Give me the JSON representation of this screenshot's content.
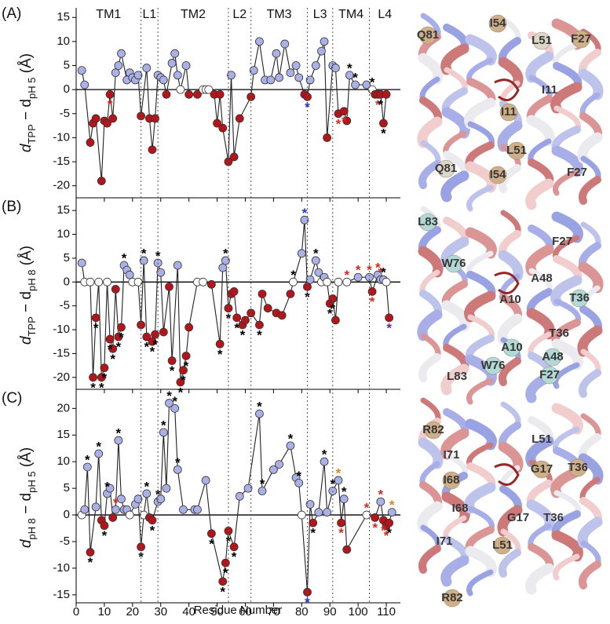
{
  "regions": {
    "labels": [
      "TM1",
      "L1",
      "TM2",
      "L2",
      "TM3",
      "L3",
      "TM4",
      "L4"
    ],
    "boundaries": [
      23,
      29,
      54,
      62,
      82,
      91,
      104
    ]
  },
  "xlabel": "Residue Number",
  "point_colors": {
    "positive": "#aab1e6",
    "negative": "#b3151b",
    "zero": "#ffffff"
  },
  "chart_data": [
    {
      "type": "line",
      "panel": "(A)",
      "ylabel": [
        {
          "text": "d"
        },
        {
          "text": "TPP",
          "sub": true
        },
        {
          "text": " − d"
        },
        {
          "text": "pH 5",
          "sub": true
        },
        {
          "text": " (Å)"
        }
      ],
      "xlim": [
        0,
        115
      ],
      "ylim": [
        -22.5,
        17
      ],
      "yticks": [
        15,
        10,
        5,
        0,
        -5,
        -10,
        -15,
        -20
      ],
      "x": [
        2,
        3,
        5,
        6,
        7,
        9,
        10,
        11,
        12,
        13,
        14,
        15,
        16,
        18,
        19,
        20,
        21,
        22,
        23,
        25,
        26,
        27,
        28,
        29,
        30,
        31,
        32,
        34,
        35,
        36,
        37,
        39,
        40,
        43,
        45,
        46,
        47,
        49,
        50,
        51,
        52,
        54,
        55,
        56,
        58,
        62,
        63,
        65,
        67,
        69,
        71,
        72,
        74,
        76,
        78,
        79,
        81,
        82,
        83,
        85,
        87,
        88,
        89,
        91,
        92,
        93,
        95,
        96,
        97,
        99,
        103,
        105,
        106,
        107,
        108,
        109,
        110
      ],
      "values": [
        4,
        1,
        -11,
        -7,
        -6,
        -19,
        -6.5,
        -7,
        -1,
        -6,
        3.5,
        5,
        7.5,
        2,
        3.5,
        2.5,
        2,
        3,
        -5.5,
        4.5,
        -6,
        -12.5,
        -6,
        3,
        2.5,
        2,
        -1,
        5.5,
        7.5,
        3,
        0,
        5,
        -1,
        -1,
        0,
        0,
        0,
        -1,
        -7,
        -1,
        -8,
        -15,
        3,
        -14,
        -6,
        -1.5,
        4,
        10,
        2,
        2,
        7.5,
        2.5,
        9.5,
        3.5,
        5,
        2.5,
        -1,
        -1.5,
        2,
        5,
        8,
        10,
        -10,
        5,
        4.5,
        -5,
        -4.5,
        -6.5,
        3,
        1,
        1,
        0,
        -1,
        -1,
        -1,
        -7,
        -1
      ],
      "marker_color": "#000000",
      "markers": [
        {
          "x": 12,
          "text": "*",
          "color": "#d42a1e"
        },
        {
          "x": 82,
          "text": "*",
          "color": "#2a36d4"
        },
        {
          "x": 93,
          "text": "*",
          "color": "#d42a1e"
        },
        {
          "x": 95,
          "text": "*",
          "color": "#d42a1e"
        },
        {
          "x": 97,
          "text": "*"
        },
        {
          "x": 99,
          "text": "*"
        },
        {
          "x": 105,
          "text": "*"
        },
        {
          "x": 107,
          "text": "*",
          "color": "#d42a1e"
        },
        {
          "x": 108,
          "text": "*"
        },
        {
          "x": 109,
          "text": "*"
        }
      ]
    },
    {
      "type": "line",
      "panel": "(B)",
      "ylabel": [
        {
          "text": "d"
        },
        {
          "text": "TPP",
          "sub": true
        },
        {
          "text": " − d"
        },
        {
          "text": "pH 8",
          "sub": true
        },
        {
          "text": " (Å)"
        }
      ],
      "xlim": [
        0,
        115
      ],
      "ylim": [
        -22.5,
        17
      ],
      "yticks": [
        15,
        10,
        5,
        0,
        -5,
        -10,
        -15,
        -20
      ],
      "x": [
        2,
        3,
        5,
        6,
        7,
        8,
        9,
        10,
        11,
        12,
        13,
        14,
        15,
        16,
        17,
        18,
        19,
        20,
        22,
        23,
        24,
        25,
        27,
        28,
        29,
        30,
        31,
        33,
        34,
        36,
        37,
        38,
        39,
        40,
        43,
        45,
        48,
        51,
        52,
        53,
        54,
        55,
        56,
        57,
        59,
        60,
        62,
        65,
        66,
        68,
        71,
        73,
        76,
        77,
        80,
        81,
        82,
        83,
        85,
        86,
        87,
        88,
        89,
        90,
        91,
        92,
        93,
        96,
        100,
        104,
        105,
        107,
        108,
        109,
        110,
        111
      ],
      "values": [
        4,
        0,
        0,
        -20,
        -7.5,
        0,
        -20,
        -18,
        0,
        -12,
        -14,
        -1.5,
        -11.5,
        -9.5,
        3.5,
        2.5,
        1.5,
        0,
        0,
        -9,
        4.5,
        -11.5,
        -12.5,
        -11,
        4,
        2,
        -10.5,
        -1,
        -16.5,
        3.5,
        -21,
        -18.5,
        -15.5,
        -9.5,
        0,
        0,
        -0.5,
        -13,
        3,
        4.5,
        -5.5,
        -2.5,
        -2,
        -7.5,
        -9,
        -8,
        -6.5,
        -9,
        -2.5,
        -5.5,
        -6.5,
        -7,
        -2.5,
        0,
        6,
        13,
        -1,
        0.5,
        4.5,
        2,
        0,
        1,
        0,
        -4.5,
        -3.5,
        -8,
        0,
        0,
        1,
        1,
        -2,
        1.5,
        0.5,
        0.5,
        0,
        -7.5
      ],
      "marker_color": "#000000",
      "markers": [
        {
          "x": 6,
          "text": "*"
        },
        {
          "x": 7,
          "text": "*"
        },
        {
          "x": 9,
          "text": "*"
        },
        {
          "x": 10,
          "text": "*"
        },
        {
          "x": 12,
          "text": "*"
        },
        {
          "x": 13,
          "text": "*"
        },
        {
          "x": 15,
          "text": "*"
        },
        {
          "x": 16,
          "text": "*"
        },
        {
          "x": 17,
          "text": "*"
        },
        {
          "x": 24,
          "text": "*"
        },
        {
          "x": 25,
          "text": "*"
        },
        {
          "x": 27,
          "text": "*"
        },
        {
          "x": 28,
          "text": "*"
        },
        {
          "x": 29,
          "text": "*"
        },
        {
          "x": 34,
          "text": "*"
        },
        {
          "x": 37,
          "text": "*"
        },
        {
          "x": 38,
          "text": "*"
        },
        {
          "x": 39,
          "text": "*"
        },
        {
          "x": 51,
          "text": "*"
        },
        {
          "x": 53,
          "text": "*"
        },
        {
          "x": 54,
          "text": "*"
        },
        {
          "x": 57,
          "text": "*"
        },
        {
          "x": 59,
          "text": "*"
        },
        {
          "x": 65,
          "text": "*"
        },
        {
          "x": 77,
          "text": "*"
        },
        {
          "x": 81,
          "text": "*",
          "color": "#2a36d4"
        },
        {
          "x": 82,
          "text": "*"
        },
        {
          "x": 85,
          "text": "*"
        },
        {
          "x": 90,
          "text": "*"
        },
        {
          "x": 91,
          "text": "*"
        },
        {
          "x": 96,
          "text": "*",
          "color": "#d42a1e"
        },
        {
          "x": 100,
          "text": "*",
          "color": "#d42a1e"
        },
        {
          "x": 104,
          "text": "*",
          "color": "#d42a1e"
        },
        {
          "x": 105,
          "text": "*",
          "color": "#d42a1e"
        },
        {
          "x": 107,
          "text": "*",
          "color": "#d42a1e"
        },
        {
          "x": 108,
          "text": "*",
          "color": "#d42a1e"
        },
        {
          "x": 109,
          "text": "*"
        },
        {
          "x": 111,
          "text": "*",
          "color": "#5a2aa0"
        }
      ]
    },
    {
      "type": "line",
      "panel": "(C)",
      "ylabel": [
        {
          "text": "d"
        },
        {
          "text": "pH 8",
          "sub": true
        },
        {
          "text": " − d"
        },
        {
          "text": "pH 5",
          "sub": true
        },
        {
          "text": " (Å)"
        }
      ],
      "xlim": [
        0,
        115
      ],
      "ylim": [
        -16.5,
        23
      ],
      "yticks": [
        20,
        15,
        10,
        5,
        0,
        -5,
        -10,
        -15
      ],
      "xticks": [
        0,
        10,
        20,
        30,
        40,
        50,
        60,
        70,
        80,
        90,
        100,
        110
      ],
      "x": [
        2,
        3,
        4,
        5,
        7,
        8,
        9,
        10,
        11,
        12,
        13,
        14,
        15,
        16,
        17,
        18,
        19,
        21,
        22,
        23,
        24,
        25,
        26,
        27,
        29,
        30,
        31,
        32,
        33,
        35,
        36,
        38,
        42,
        43,
        46,
        48,
        52,
        53,
        54,
        56,
        58,
        61,
        65,
        66,
        70,
        72,
        76,
        78,
        79,
        80,
        82,
        83,
        84,
        86,
        88,
        89,
        91,
        93,
        94,
        95,
        96,
        103,
        106,
        108,
        109,
        110,
        111,
        112
      ],
      "values": [
        0,
        1,
        9,
        -7,
        1.5,
        11.5,
        -1,
        -2,
        4,
        5,
        -0.5,
        1,
        14,
        3,
        1,
        1,
        0,
        2,
        3,
        -6,
        0,
        4,
        -0.5,
        -1,
        2.5,
        3,
        15.5,
        5,
        21,
        20,
        8.5,
        1,
        1,
        1,
        6.5,
        -3.5,
        -12.5,
        -9,
        -3,
        -6,
        3.5,
        5,
        19,
        4.5,
        8.5,
        9.5,
        13,
        7,
        6,
        0,
        -14.5,
        2,
        -1.5,
        0.5,
        10,
        0.5,
        4.5,
        6.5,
        -1.5,
        3,
        -6.5,
        0,
        -0.5,
        2.5,
        -1,
        -2,
        -1.5,
        0.5
      ],
      "marker_color": "#000000",
      "markers": [
        {
          "x": 4,
          "text": "*"
        },
        {
          "x": 5,
          "text": "*"
        },
        {
          "x": 8,
          "text": "*"
        },
        {
          "x": 10,
          "text": "*"
        },
        {
          "x": 11,
          "text": "*"
        },
        {
          "x": 14,
          "text": "*",
          "color": "#d42a1e"
        },
        {
          "x": 15,
          "text": "*"
        },
        {
          "x": 23,
          "text": "*"
        },
        {
          "x": 25,
          "text": "*"
        },
        {
          "x": 27,
          "text": "*"
        },
        {
          "x": 29,
          "text": "*"
        },
        {
          "x": 31,
          "text": "*"
        },
        {
          "x": 33,
          "text": "*"
        },
        {
          "x": 35,
          "text": "*"
        },
        {
          "x": 36,
          "text": "*"
        },
        {
          "x": 48,
          "text": "*"
        },
        {
          "x": 52,
          "text": "*"
        },
        {
          "x": 53,
          "text": "*"
        },
        {
          "x": 54,
          "text": "*"
        },
        {
          "x": 56,
          "text": "*"
        },
        {
          "x": 65,
          "text": "*"
        },
        {
          "x": 66,
          "text": "*"
        },
        {
          "x": 76,
          "text": "*"
        },
        {
          "x": 79,
          "text": "*"
        },
        {
          "x": 82,
          "text": "*",
          "color": "#2a36d4"
        },
        {
          "x": 84,
          "text": "*"
        },
        {
          "x": 88,
          "text": "*"
        },
        {
          "x": 91,
          "text": "*"
        },
        {
          "x": 93,
          "text": "*",
          "color": "#e8821e"
        },
        {
          "x": 94,
          "text": "*",
          "color": "#d42a1e"
        },
        {
          "x": 95,
          "text": "*"
        },
        {
          "x": 103,
          "text": "*",
          "color": "#d42a1e"
        },
        {
          "x": 106,
          "text": "*",
          "color": "#d42a1e"
        },
        {
          "x": 108,
          "text": "*",
          "color": "#d42a1e"
        },
        {
          "x": 109,
          "text": "*",
          "color": "#d42a1e"
        },
        {
          "x": 110,
          "text": "*",
          "color": "#d42a1e"
        },
        {
          "x": 111,
          "text": "*"
        },
        {
          "x": 112,
          "text": "*",
          "color": "#e8821e"
        }
      ]
    }
  ],
  "structures": [
    {
      "labels": [
        {
          "text": "Q81",
          "sphere": "#c9a77c"
        },
        {
          "text": "I54",
          "sphere": "#c9a77c"
        },
        {
          "text": "L51",
          "sphere": "#d9d4c4"
        },
        {
          "text": "F27",
          "sphere": "#c9a77c"
        },
        {
          "text": "I11"
        },
        {
          "text": "I11",
          "sphere": "#c9a77c"
        },
        {
          "text": "L51",
          "sphere": "#c9a77c"
        },
        {
          "text": "Q81",
          "sphere": "#d9d4c4"
        },
        {
          "text": "I54",
          "sphere": "#c9a77c"
        },
        {
          "text": "F27"
        }
      ]
    },
    {
      "labels": [
        {
          "text": "L83",
          "sphere": "#a9d6d2"
        },
        {
          "text": "W76",
          "sphere": "#a9d6d2"
        },
        {
          "text": "F27"
        },
        {
          "text": "A48"
        },
        {
          "text": "A10"
        },
        {
          "text": "T36",
          "sphere": "#a9d6d2"
        },
        {
          "text": "A10",
          "sphere": "#a9d6d2"
        },
        {
          "text": "T36"
        },
        {
          "text": "W76",
          "sphere": "#a9d6d2"
        },
        {
          "text": "A48",
          "sphere": "#a9d6d2"
        },
        {
          "text": "L83"
        },
        {
          "text": "F27",
          "sphere": "#a9d6d2"
        }
      ]
    },
    {
      "labels": [
        {
          "text": "R82",
          "sphere": "#c9a77c"
        },
        {
          "text": "L51"
        },
        {
          "text": "I71"
        },
        {
          "text": "T36",
          "sphere": "#c9a77c"
        },
        {
          "text": "G17",
          "sphere": "#c9a77c"
        },
        {
          "text": "I68",
          "sphere": "#c9a77c"
        },
        {
          "text": "I68"
        },
        {
          "text": "G17"
        },
        {
          "text": "T36"
        },
        {
          "text": "I71"
        },
        {
          "text": "L51",
          "sphere": "#c9a77c"
        },
        {
          "text": "R82",
          "sphere": "#c9a77c"
        }
      ]
    }
  ]
}
